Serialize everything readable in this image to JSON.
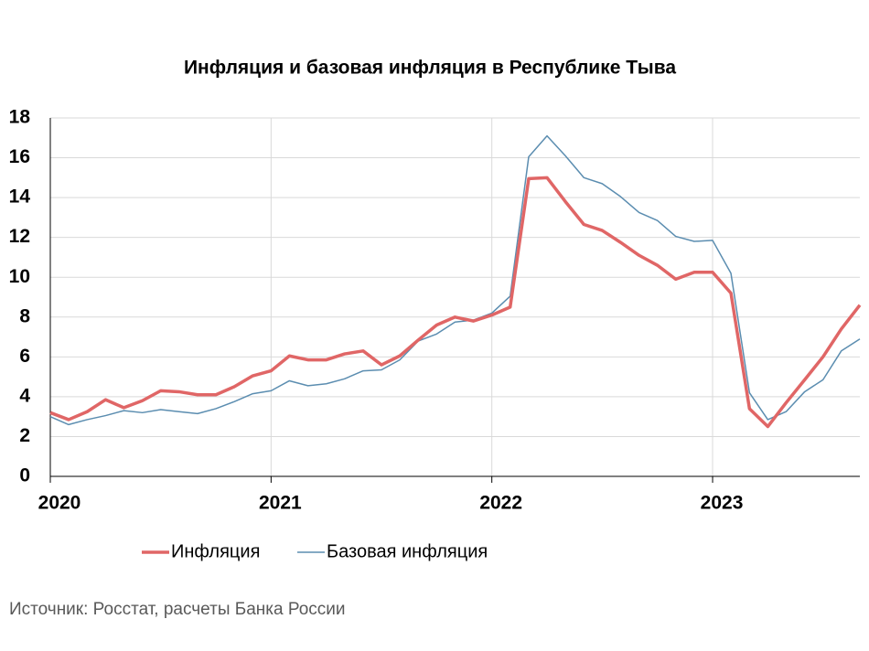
{
  "chart_data": {
    "type": "line",
    "title": "Инфляция и базовая инфляция в Республике Тыва",
    "source": "Источник: Росстат, расчеты Банка России",
    "x": [
      2020,
      2020.083,
      2020.167,
      2020.25,
      2020.333,
      2020.417,
      2020.5,
      2020.583,
      2020.667,
      2020.75,
      2020.833,
      2020.917,
      2021,
      2021.083,
      2021.167,
      2021.25,
      2021.333,
      2021.417,
      2021.5,
      2021.583,
      2021.667,
      2021.75,
      2021.833,
      2021.917,
      2022,
      2022.083,
      2022.167,
      2022.25,
      2022.333,
      2022.417,
      2022.5,
      2022.583,
      2022.667,
      2022.75,
      2022.833,
      2022.917,
      2023,
      2023.083,
      2023.167,
      2023.25,
      2023.333,
      2023.417,
      2023.5,
      2023.583,
      2023.667
    ],
    "series": [
      {
        "name": "Инфляция",
        "color": "#e06666",
        "width": 3.5,
        "values": [
          3.2,
          2.85,
          3.25,
          3.85,
          3.45,
          3.8,
          4.3,
          4.25,
          4.1,
          4.1,
          4.5,
          5.05,
          5.3,
          6.05,
          5.85,
          5.85,
          6.15,
          6.3,
          5.6,
          6.05,
          6.85,
          7.6,
          8.0,
          7.8,
          8.1,
          8.5,
          14.95,
          15.0,
          13.8,
          12.65,
          12.35,
          11.75,
          11.1,
          10.6,
          9.9,
          10.25,
          10.25,
          9.2,
          3.4,
          2.5,
          3.7,
          4.85,
          6.0,
          7.4,
          8.6
        ]
      },
      {
        "name": "Базовая инфляция",
        "color": "#5b8db0",
        "width": 1.5,
        "values": [
          3.0,
          2.6,
          2.85,
          3.05,
          3.3,
          3.2,
          3.35,
          3.25,
          3.15,
          3.4,
          3.75,
          4.15,
          4.3,
          4.8,
          4.55,
          4.65,
          4.9,
          5.3,
          5.35,
          5.85,
          6.8,
          7.15,
          7.75,
          7.85,
          8.2,
          9.05,
          16.05,
          17.1,
          16.1,
          15.0,
          14.7,
          14.05,
          13.25,
          12.85,
          12.05,
          11.8,
          11.85,
          10.2,
          4.2,
          2.85,
          3.25,
          4.25,
          4.85,
          6.3,
          6.9
        ]
      }
    ],
    "xlim": [
      2020,
      2023.667
    ],
    "xticks": [
      2020,
      2021,
      2022,
      2023
    ],
    "ylim": [
      0,
      18
    ],
    "yticks": [
      0,
      2,
      4,
      6,
      8,
      10,
      12,
      14,
      16,
      18
    ],
    "grid": true,
    "legend": "bottom"
  }
}
